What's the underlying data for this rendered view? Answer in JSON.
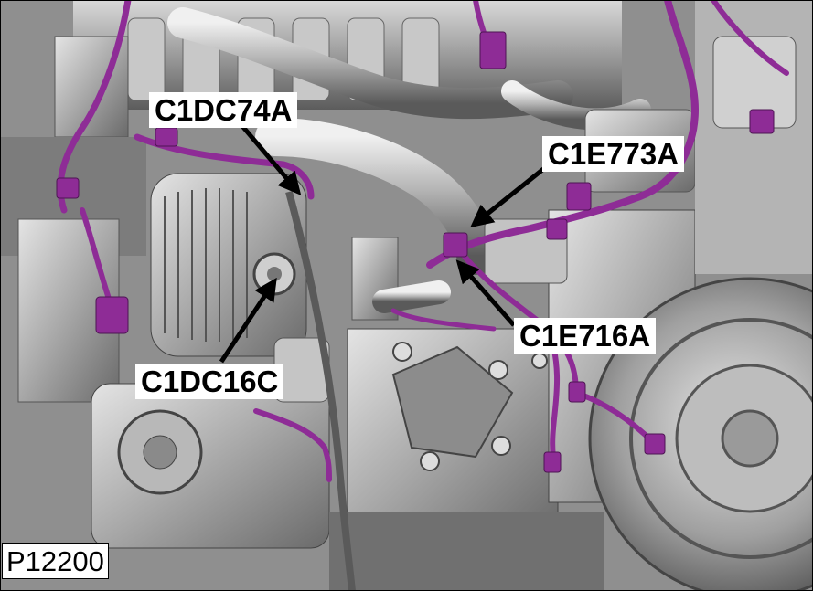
{
  "figure": {
    "id": "P12200"
  },
  "callouts": [
    {
      "label": "C1DC74A"
    },
    {
      "label": "C1E773A"
    },
    {
      "label": "C1E716A"
    },
    {
      "label": "C1DC16C"
    }
  ],
  "colors": {
    "harness": "#8e2c96",
    "harness_highlight": "#c15bcb",
    "metal_light": "#d6d6d6",
    "metal_mid": "#a9a9a9",
    "metal_dark": "#5e5e5e",
    "arrow": "#000000",
    "label_background": "#ffffff"
  }
}
